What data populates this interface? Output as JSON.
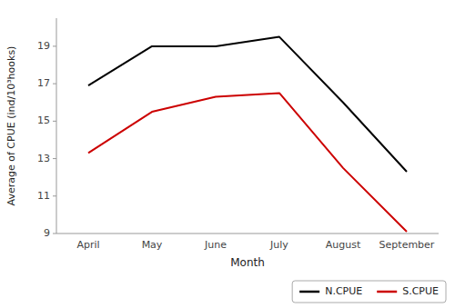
{
  "chart_data": {
    "type": "line",
    "categories": [
      "April",
      "May",
      "June",
      "July",
      "August",
      "September"
    ],
    "series": [
      {
        "name": "N.CPUE",
        "color": "#000000",
        "values": [
          16.9,
          19.0,
          19.0,
          19.5,
          16.0,
          12.3
        ]
      },
      {
        "name": "S.CPUE",
        "color": "#cc0000",
        "values": [
          13.3,
          15.5,
          16.3,
          16.5,
          12.5,
          9.1
        ]
      }
    ],
    "x_label": "Month",
    "y_label": "Average of CPUE (ind/10³hooks)",
    "ylim": [
      9,
      20.5
    ],
    "yticks": [
      9,
      11,
      13,
      15,
      17,
      19
    ],
    "grid": false,
    "legend": "lower right"
  }
}
